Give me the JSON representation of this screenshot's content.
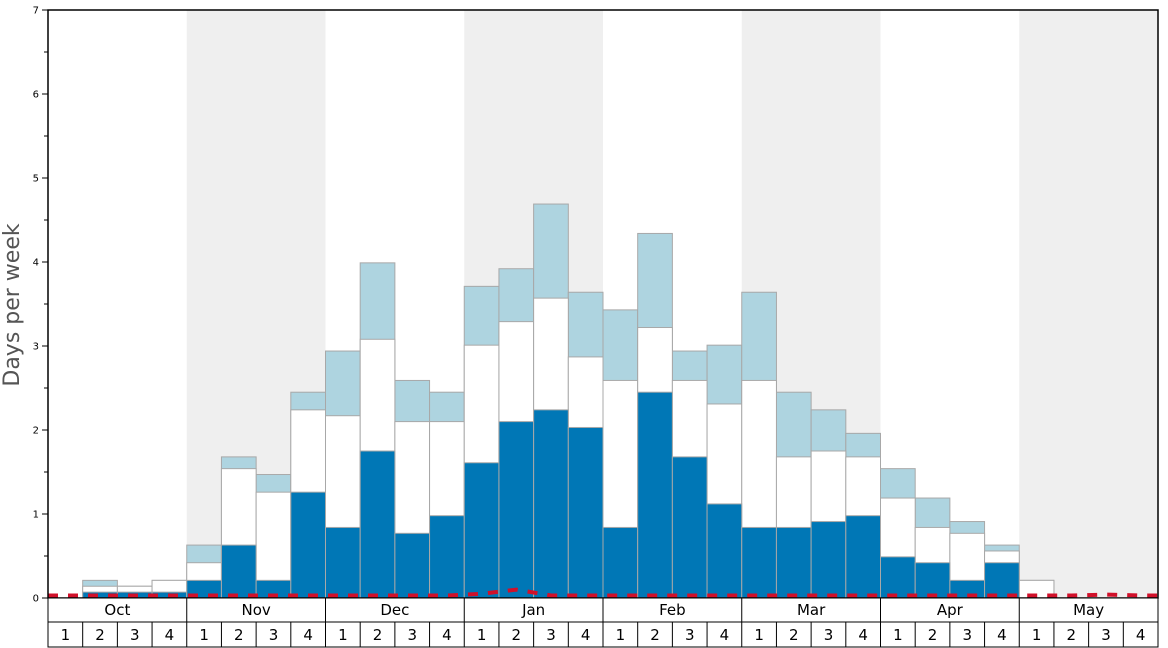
{
  "chart_data": {
    "type": "bar",
    "ylabel": "Days per week",
    "ylim": [
      0,
      7
    ],
    "yticks": [
      "0",
      "1",
      "2",
      "3",
      "4",
      "5",
      "6",
      "7"
    ],
    "months": [
      "Oct",
      "Nov",
      "Dec",
      "Jan",
      "Feb",
      "Mar",
      "Apr",
      "May"
    ],
    "week_labels": [
      "1",
      "2",
      "3",
      "4"
    ],
    "categories": [
      "Oct 1",
      "Oct 2",
      "Oct 3",
      "Oct 4",
      "Nov 1",
      "Nov 2",
      "Nov 3",
      "Nov 4",
      "Dec 1",
      "Dec 2",
      "Dec 3",
      "Dec 4",
      "Jan 1",
      "Jan 2",
      "Jan 3",
      "Jan 4",
      "Feb 1",
      "Feb 2",
      "Feb 3",
      "Feb 4",
      "Mar 1",
      "Mar 2",
      "Mar 3",
      "Mar 4",
      "Apr 1",
      "Apr 2",
      "Apr 3",
      "Apr 4",
      "May 1",
      "May 2",
      "May 3",
      "May 4"
    ],
    "series": [
      {
        "color": "#0077b6",
        "values": [
          0,
          0.07,
          0.07,
          0.07,
          0.21,
          0.63,
          0.21,
          1.26,
          0.84,
          1.75,
          0.77,
          0.98,
          1.61,
          2.1,
          2.24,
          2.03,
          0.84,
          2.45,
          1.68,
          1.12,
          0.84,
          0.84,
          0.91,
          0.98,
          0.49,
          0.42,
          0.21,
          0.42,
          0,
          0,
          0,
          0
        ]
      },
      {
        "color": "#ffffff",
        "values": [
          0,
          0.14,
          0.14,
          0.21,
          0.42,
          1.54,
          1.26,
          2.24,
          2.17,
          3.08,
          2.1,
          2.1,
          3.01,
          3.29,
          3.57,
          2.87,
          2.59,
          3.22,
          2.59,
          2.31,
          2.59,
          1.68,
          1.75,
          1.68,
          1.19,
          0.84,
          0.77,
          0.56,
          0.21,
          0,
          0,
          0
        ]
      },
      {
        "color": "#aed4e0",
        "values": [
          0,
          0.21,
          0.14,
          0.21,
          0.63,
          1.68,
          1.47,
          2.45,
          2.94,
          3.99,
          2.59,
          2.45,
          3.71,
          3.92,
          4.69,
          3.64,
          3.43,
          4.34,
          2.94,
          3.01,
          3.64,
          2.45,
          2.24,
          1.96,
          1.54,
          1.19,
          0.91,
          0.63,
          0.21,
          0,
          0,
          0
        ]
      }
    ],
    "baseline": {
      "color": "#d0102a",
      "style": "dashed",
      "values": [
        0.03,
        0.03,
        0.03,
        0.03,
        0.03,
        0.03,
        0.03,
        0.03,
        0.03,
        0.03,
        0.03,
        0.03,
        0.05,
        0.1,
        0.03,
        0.03,
        0.03,
        0.03,
        0.03,
        0.03,
        0.03,
        0.03,
        0.03,
        0.03,
        0.03,
        0.03,
        0.03,
        0.03,
        0.03,
        0.03,
        0.04,
        0.03
      ]
    },
    "shaded_months": [
      "Nov",
      "Jan",
      "Mar",
      "May"
    ],
    "shade_color": "#efefef",
    "grid": false,
    "legend": "none"
  }
}
